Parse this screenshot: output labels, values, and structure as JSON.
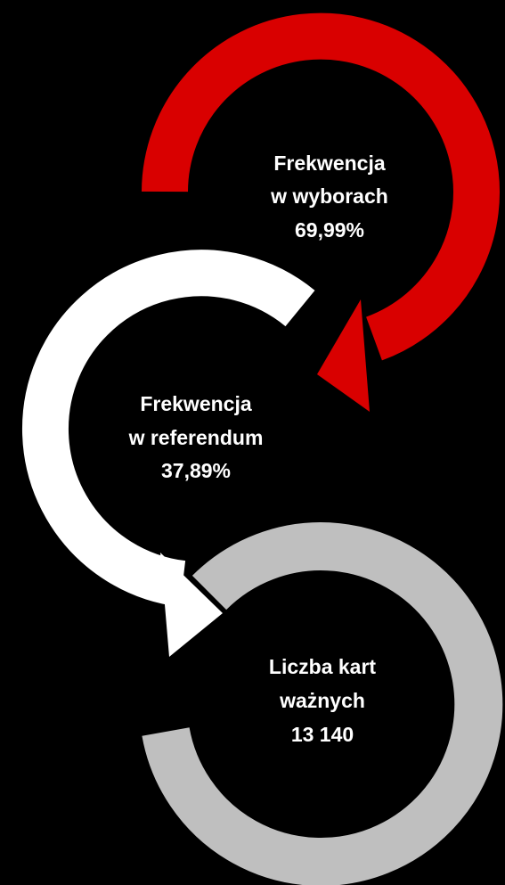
{
  "nodes": [
    {
      "lines": [
        "Frekwencja",
        "w wyborach",
        "69,99%"
      ]
    },
    {
      "lines": [
        "Frekwencja",
        "w referendum",
        "37,89%"
      ]
    },
    {
      "lines": [
        "Liczba kart",
        "ważnych",
        "13 140"
      ]
    }
  ]
}
